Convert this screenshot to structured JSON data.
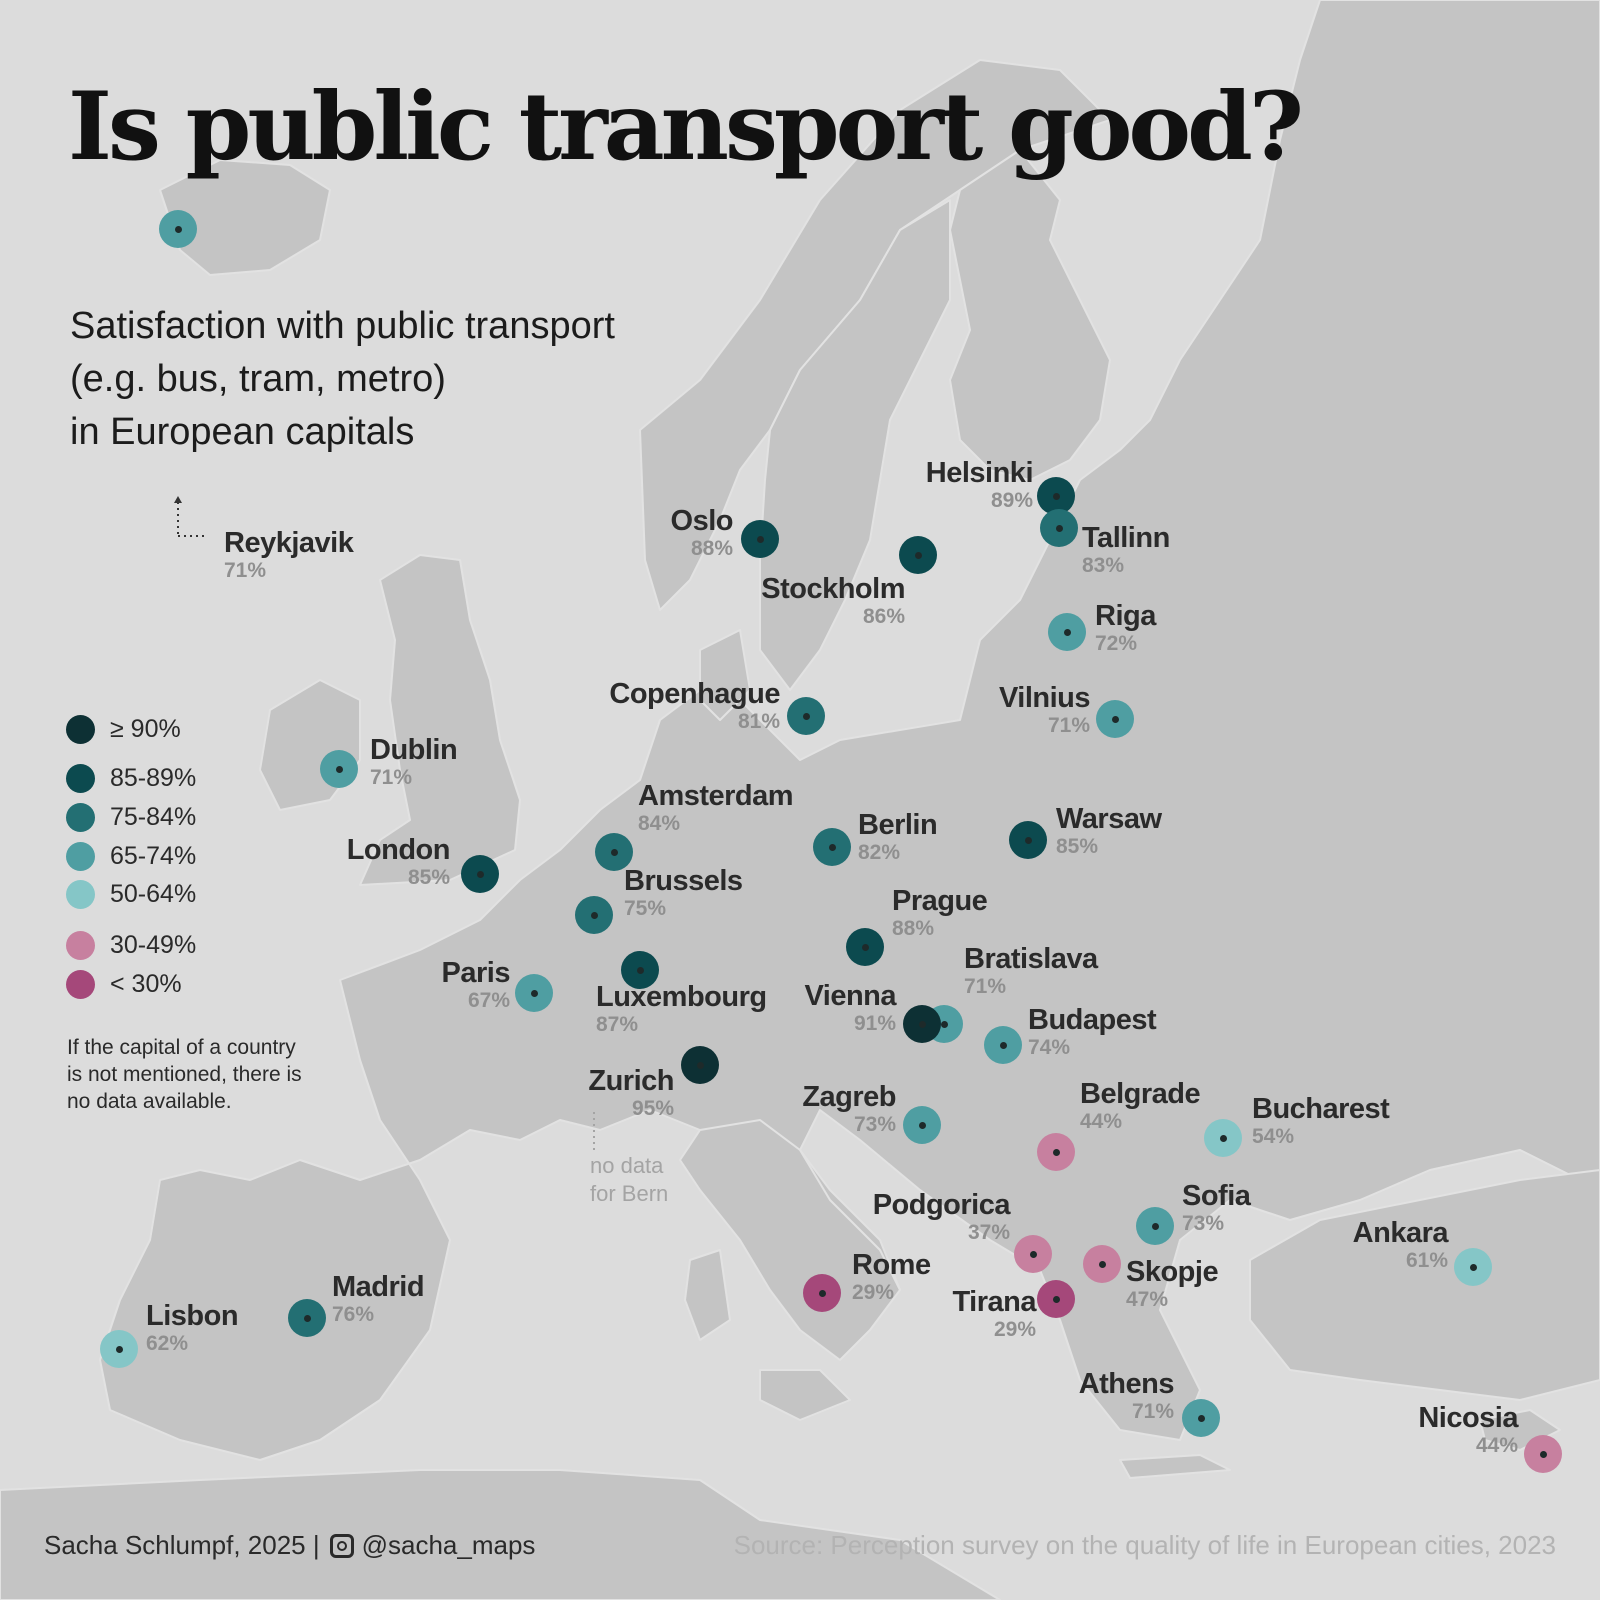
{
  "title": "Is public transport good?",
  "subtitle": [
    "Satisfaction with public transport",
    "(e.g. bus, tram, metro)",
    "in European capitals"
  ],
  "legend": [
    {
      "label": "≥ 90%",
      "color": "#0d3034"
    },
    {
      "label": "85-89%",
      "color": "#0c4a4f"
    },
    {
      "label": "75-84%",
      "color": "#236f73"
    },
    {
      "label": "65-74%",
      "color": "#4f9ea2"
    },
    {
      "label": "50-64%",
      "color": "#85c6c7"
    },
    {
      "label": "30-49%",
      "color": "#c7809f"
    },
    {
      "label": "< 30%",
      "color": "#a5487a"
    }
  ],
  "note": [
    "If the capital of a country",
    "is not mentioned, there is",
    "no data available."
  ],
  "cities": [
    {
      "name": "Reykjavik",
      "value": "71%",
      "color": "#4f9ea2"
    },
    {
      "name": "Oslo",
      "value": "88%",
      "color": "#0c4a4f"
    },
    {
      "name": "Stockholm",
      "value": "86%",
      "color": "#0c4a4f"
    },
    {
      "name": "Helsinki",
      "value": "89%",
      "color": "#0c4a4f"
    },
    {
      "name": "Tallinn",
      "value": "83%",
      "color": "#236f73"
    },
    {
      "name": "Riga",
      "value": "72%",
      "color": "#4f9ea2"
    },
    {
      "name": "Vilnius",
      "value": "71%",
      "color": "#4f9ea2"
    },
    {
      "name": "Copenhague",
      "value": "81%",
      "color": "#236f73"
    },
    {
      "name": "Dublin",
      "value": "71%",
      "color": "#4f9ea2"
    },
    {
      "name": "London",
      "value": "85%",
      "color": "#0c4a4f"
    },
    {
      "name": "Amsterdam",
      "value": "84%",
      "color": "#236f73"
    },
    {
      "name": "Brussels",
      "value": "75%",
      "color": "#236f73"
    },
    {
      "name": "Berlin",
      "value": "82%",
      "color": "#236f73"
    },
    {
      "name": "Warsaw",
      "value": "85%",
      "color": "#0c4a4f"
    },
    {
      "name": "Prague",
      "value": "88%",
      "color": "#0c4a4f"
    },
    {
      "name": "Paris",
      "value": "67%",
      "color": "#4f9ea2"
    },
    {
      "name": "Luxembourg",
      "value": "87%",
      "color": "#0c4a4f"
    },
    {
      "name": "Zurich",
      "value": "95%",
      "color": "#0d3034"
    },
    {
      "name": "Vienna",
      "value": "91%",
      "color": "#0d3034"
    },
    {
      "name": "Bratislava",
      "value": "71%",
      "color": "#4f9ea2"
    },
    {
      "name": "Budapest",
      "value": "74%",
      "color": "#4f9ea2"
    },
    {
      "name": "Zagreb",
      "value": "73%",
      "color": "#4f9ea2"
    },
    {
      "name": "Belgrade",
      "value": "44%",
      "color": "#c7809f"
    },
    {
      "name": "Bucharest",
      "value": "54%",
      "color": "#85c6c7"
    },
    {
      "name": "Sofia",
      "value": "73%",
      "color": "#4f9ea2"
    },
    {
      "name": "Podgorica",
      "value": "37%",
      "color": "#c7809f"
    },
    {
      "name": "Skopje",
      "value": "47%",
      "color": "#c7809f"
    },
    {
      "name": "Tirana",
      "value": "29%",
      "color": "#a5487a"
    },
    {
      "name": "Rome",
      "value": "29%",
      "color": "#a5487a"
    },
    {
      "name": "Athens",
      "value": "71%",
      "color": "#4f9ea2"
    },
    {
      "name": "Ankara",
      "value": "61%",
      "color": "#85c6c7"
    },
    {
      "name": "Nicosia",
      "value": "44%",
      "color": "#c7809f"
    },
    {
      "name": "Madrid",
      "value": "76%",
      "color": "#236f73"
    },
    {
      "name": "Lisbon",
      "value": "62%",
      "color": "#85c6c7"
    }
  ],
  "bern_note": [
    "no data",
    "for Bern"
  ],
  "footer": {
    "author": "Sacha Schlumpf, 2025 |",
    "handle": "@sacha_maps",
    "source": "Source: Perception survey on the quality of life in European cities, 2023"
  }
}
